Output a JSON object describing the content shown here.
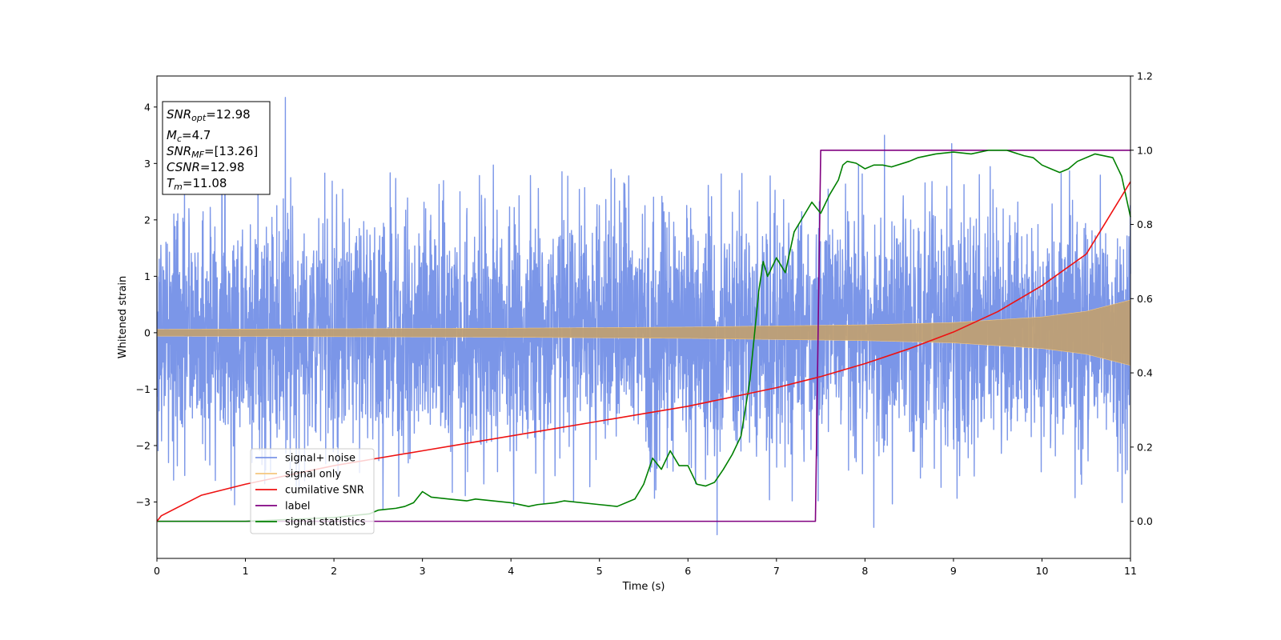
{
  "chart_data": {
    "type": "line",
    "title": "",
    "xlabel": "Time (s)",
    "ylabel_left": "Whitened strain",
    "ylabel_right": "",
    "xlim": [
      0,
      11
    ],
    "ylim_left": [
      -4,
      4.55
    ],
    "ylim_right": [
      -0.1,
      1.2
    ],
    "x_ticks": [
      "0",
      "1",
      "2",
      "3",
      "4",
      "5",
      "6",
      "7",
      "8",
      "9",
      "10",
      "11"
    ],
    "y_left_ticks": [
      "−3",
      "−2",
      "−1",
      "0",
      "1",
      "2",
      "3",
      "4"
    ],
    "y_right_ticks": [
      "0.0",
      "0.2",
      "0.4",
      "0.6",
      "0.8",
      "1.0",
      "1.2"
    ],
    "grid": false,
    "legend_position": "lower-left",
    "info_box": {
      "lines": [
        {
          "pre": "SNR",
          "sub": "opt",
          "post": "=12.98"
        },
        {
          "pre": "M",
          "sub": "c",
          "post": "=4.7"
        },
        {
          "pre": "SNR",
          "sub": "MF",
          "post": "=[13.26]"
        },
        {
          "pre": "CSNR",
          "sub": "",
          "post": "=12.98"
        },
        {
          "pre": "T",
          "sub": "m",
          "post": "=11.08"
        }
      ]
    },
    "series": [
      {
        "name": "signal+ noise",
        "axis": "left",
        "color": "#7b96e8",
        "description_of_shape": "dense gaussian noise around 0 with std ~1.1, range about -3.6 to 4.2",
        "peaks": [
          [
            1.45,
            4.17
          ],
          [
            8.22,
            3.5
          ],
          [
            8.98,
            3.35
          ],
          [
            6.33,
            -3.58
          ],
          [
            8.1,
            -3.45
          ],
          [
            7.47,
            -2.98
          ]
        ]
      },
      {
        "name": "signal only",
        "axis": "left",
        "color": "#f5c77e",
        "envelope": [
          [
            0,
            0.06
          ],
          [
            2,
            0.07
          ],
          [
            4,
            0.08
          ],
          [
            6,
            0.1
          ],
          [
            7,
            0.12
          ],
          [
            8,
            0.14
          ],
          [
            9,
            0.18
          ],
          [
            10,
            0.28
          ],
          [
            10.5,
            0.38
          ],
          [
            11,
            0.58
          ]
        ]
      },
      {
        "name": "cumilative SNR",
        "axis": "right",
        "color": "#ee1111",
        "x": [
          0,
          0.05,
          0.5,
          1,
          1.5,
          2,
          2.5,
          3,
          3.5,
          4,
          4.5,
          5,
          5.5,
          6,
          6.5,
          7,
          7.5,
          8,
          8.5,
          9,
          9.5,
          10,
          10.5,
          11
        ],
        "y": [
          0.0,
          0.015,
          0.07,
          0.1,
          0.125,
          0.15,
          0.17,
          0.19,
          0.21,
          0.23,
          0.25,
          0.27,
          0.29,
          0.31,
          0.335,
          0.36,
          0.39,
          0.425,
          0.465,
          0.51,
          0.565,
          0.635,
          0.72,
          0.915
        ]
      },
      {
        "name": "label",
        "axis": "right",
        "color": "#800080",
        "x": [
          0,
          7.44,
          7.5,
          11
        ],
        "y": [
          0,
          0,
          1,
          1
        ]
      },
      {
        "name": "signal statistics",
        "axis": "right",
        "color": "#008000",
        "x": [
          0,
          1.0,
          2.0,
          2.4,
          2.5,
          2.7,
          2.8,
          2.9,
          3.0,
          3.1,
          3.3,
          3.5,
          3.6,
          4.0,
          4.2,
          4.3,
          4.5,
          4.6,
          5.0,
          5.2,
          5.4,
          5.5,
          5.6,
          5.7,
          5.8,
          5.9,
          6.0,
          6.1,
          6.2,
          6.3,
          6.4,
          6.5,
          6.6,
          6.7,
          6.8,
          6.85,
          6.9,
          7.0,
          7.1,
          7.2,
          7.3,
          7.4,
          7.5,
          7.6,
          7.7,
          7.75,
          7.8,
          7.9,
          8.0,
          8.1,
          8.2,
          8.3,
          8.5,
          8.6,
          8.8,
          9.0,
          9.2,
          9.4,
          9.6,
          9.8,
          9.9,
          10.0,
          10.1,
          10.2,
          10.3,
          10.4,
          10.6,
          10.8,
          10.9,
          11.0
        ],
        "y": [
          0.0,
          0.0,
          0.01,
          0.02,
          0.03,
          0.035,
          0.04,
          0.05,
          0.08,
          0.065,
          0.06,
          0.055,
          0.06,
          0.05,
          0.04,
          0.045,
          0.05,
          0.055,
          0.045,
          0.04,
          0.06,
          0.1,
          0.17,
          0.14,
          0.19,
          0.15,
          0.15,
          0.1,
          0.095,
          0.105,
          0.14,
          0.18,
          0.23,
          0.38,
          0.62,
          0.7,
          0.66,
          0.71,
          0.67,
          0.78,
          0.82,
          0.86,
          0.83,
          0.88,
          0.92,
          0.96,
          0.97,
          0.965,
          0.95,
          0.96,
          0.96,
          0.955,
          0.97,
          0.98,
          0.99,
          0.995,
          0.99,
          1.0,
          1.0,
          0.985,
          0.98,
          0.96,
          0.95,
          0.94,
          0.95,
          0.97,
          0.99,
          0.98,
          0.93,
          0.82
        ]
      }
    ]
  }
}
